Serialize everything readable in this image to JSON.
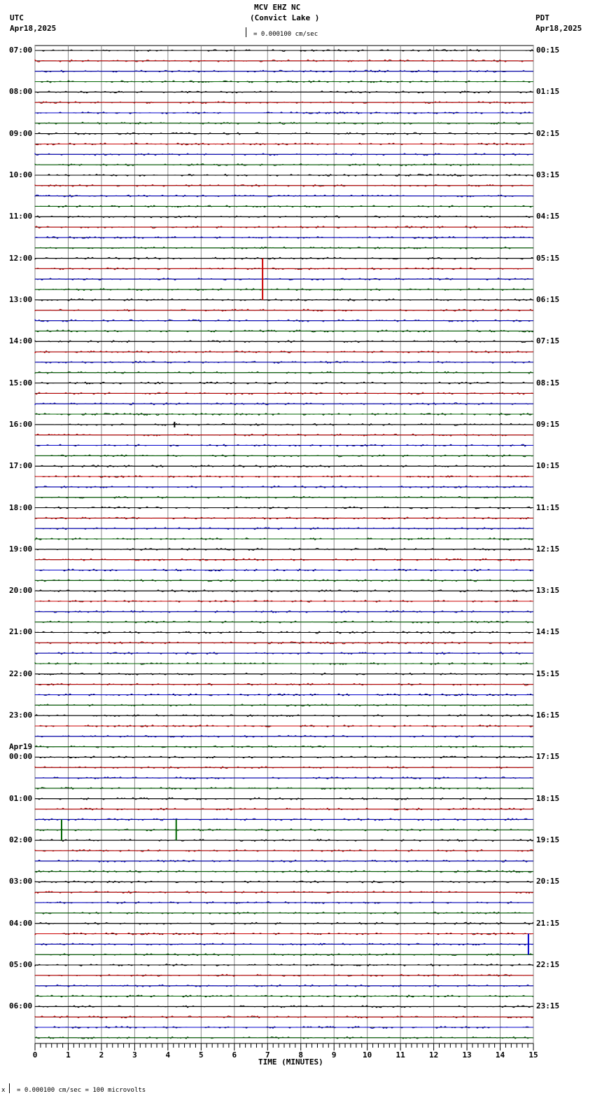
{
  "header": {
    "station": "MCV EHZ NC",
    "location": "(Convict Lake )",
    "left_tz": "UTC",
    "left_date": "Apr18,2025",
    "right_tz": "PDT",
    "right_date": "Apr18,2025",
    "scale_text": "= 0.000100 cm/sec"
  },
  "footer": {
    "scale_text": "= 0.000100 cm/sec =     100 microvolts",
    "prefix": "x"
  },
  "chart_data": {
    "type": "line",
    "title": "MCV EHZ NC (Convict Lake )",
    "subtitle": "= 0.000100 cm/sec",
    "xlabel": "TIME (MINUTES)",
    "ylabel": "",
    "x_ticks": [
      0,
      1,
      2,
      3,
      4,
      5,
      6,
      7,
      8,
      9,
      10,
      11,
      12,
      13,
      14,
      15
    ],
    "xlim": [
      0,
      15
    ],
    "grid": true,
    "trace_colors": [
      "#000000",
      "#cc0000",
      "#0000cc",
      "#006600"
    ],
    "traces_per_hour": 4,
    "left_labels_utc": [
      "07:00",
      "08:00",
      "09:00",
      "10:00",
      "11:00",
      "12:00",
      "13:00",
      "14:00",
      "15:00",
      "16:00",
      "17:00",
      "18:00",
      "19:00",
      "20:00",
      "21:00",
      "22:00",
      "23:00",
      "00:00",
      "01:00",
      "02:00",
      "03:00",
      "04:00",
      "05:00",
      "06:00"
    ],
    "date_change_label": {
      "text": "Apr19",
      "before": "00:00"
    },
    "right_labels_pdt": [
      "00:15",
      "01:15",
      "02:15",
      "03:15",
      "04:15",
      "05:15",
      "06:15",
      "07:15",
      "08:15",
      "09:15",
      "10:15",
      "11:15",
      "12:15",
      "13:15",
      "14:15",
      "15:15",
      "16:15",
      "17:15",
      "18:15",
      "19:15",
      "20:15",
      "21:15",
      "22:15",
      "23:15"
    ],
    "notable_events": [
      {
        "hour": "12:00",
        "trace": 1,
        "minute": 6.85,
        "amplitude": "large",
        "span_traces": 4
      },
      {
        "hour": "16:00",
        "trace": 0,
        "minute": 4.2,
        "amplitude": "medium"
      },
      {
        "hour": "01:00",
        "trace": 3,
        "minute": 0.8,
        "amplitude": "large"
      },
      {
        "hour": "01:00",
        "trace": 3,
        "minute": 4.25,
        "amplitude": "large"
      },
      {
        "hour": "04:00",
        "trace": 2,
        "minute": 14.85,
        "amplitude": "large"
      }
    ]
  }
}
